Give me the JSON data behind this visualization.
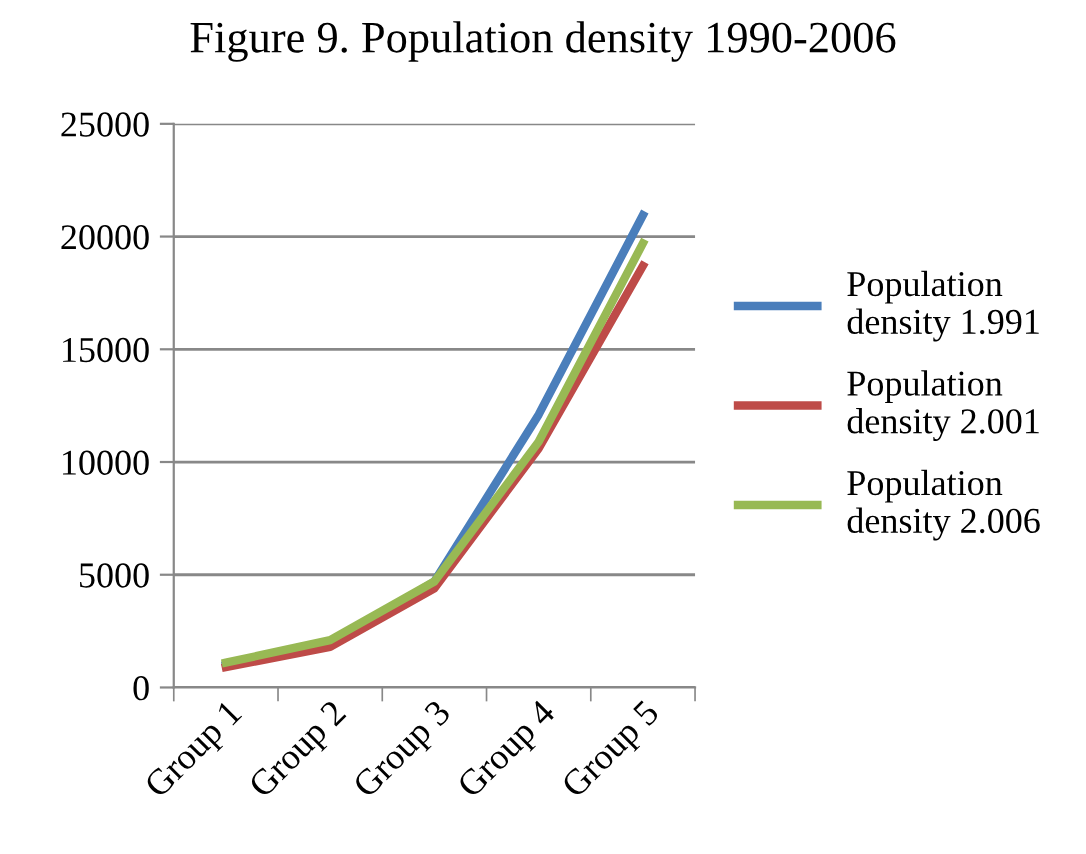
{
  "chart_data": {
    "type": "line",
    "title": "Figure 9. Population density 1990-2006",
    "categories": [
      "Group 1",
      "Group 2",
      "Group 3",
      "Group 4",
      "Group 5"
    ],
    "series": [
      {
        "name": "Population density 1.991",
        "color": "#4a7ebb",
        "values": [
          1000,
          1900,
          4700,
          12100,
          20950
        ]
      },
      {
        "name": "Population density 2.001",
        "color": "#be4b48",
        "values": [
          900,
          1800,
          4400,
          10600,
          18700
        ]
      },
      {
        "name": "Population density 2.006",
        "color": "#98b954",
        "values": [
          1100,
          2100,
          4700,
          10900,
          19700
        ]
      }
    ],
    "ylim": [
      0,
      25000
    ],
    "yticks": [
      0,
      5000,
      10000,
      15000,
      20000,
      25000
    ],
    "grid": "y",
    "legend": "right"
  }
}
